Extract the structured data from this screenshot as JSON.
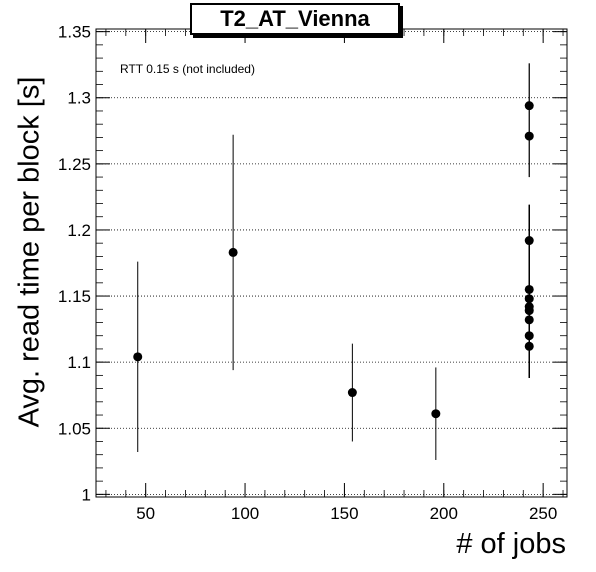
{
  "chart_data": {
    "type": "scatter",
    "title": "T2_AT_Vienna",
    "annotation": "RTT 0.15 s (not included)",
    "xlabel": "# of jobs",
    "ylabel": "Avg. read time per block [s]",
    "xlim": [
      25,
      262
    ],
    "ylim": [
      0.998,
      1.352
    ],
    "xticks": [
      50,
      100,
      150,
      200,
      250
    ],
    "yticks": [
      1,
      1.05,
      1.1,
      1.15,
      1.2,
      1.25,
      1.3,
      1.35
    ],
    "ytick_labels": [
      "1",
      "1.05",
      "1.1",
      "1.15",
      "1.2",
      "1.25",
      "1.3",
      "1.35"
    ],
    "grid": "horizontal-dotted",
    "points": [
      {
        "x": 46,
        "y": 1.104,
        "yerr_low": 1.032,
        "yerr_high": 1.176
      },
      {
        "x": 94,
        "y": 1.183,
        "yerr_low": 1.094,
        "yerr_high": 1.272
      },
      {
        "x": 154,
        "y": 1.077,
        "yerr_low": 1.04,
        "yerr_high": 1.114
      },
      {
        "x": 196,
        "y": 1.061,
        "yerr_low": 1.026,
        "yerr_high": 1.096
      },
      {
        "x": 243,
        "y": 1.294,
        "yerr_low": 1.24,
        "yerr_high": 1.326
      },
      {
        "x": 243,
        "y": 1.271,
        "yerr_low": 1.24,
        "yerr_high": 1.326
      },
      {
        "x": 243,
        "y": 1.192,
        "yerr_low": 1.088,
        "yerr_high": 1.219
      },
      {
        "x": 243,
        "y": 1.155,
        "yerr_low": 1.088,
        "yerr_high": 1.219
      },
      {
        "x": 243,
        "y": 1.148,
        "yerr_low": 1.088,
        "yerr_high": 1.219
      },
      {
        "x": 243,
        "y": 1.142,
        "yerr_low": 1.088,
        "yerr_high": 1.219
      },
      {
        "x": 243,
        "y": 1.139,
        "yerr_low": 1.088,
        "yerr_high": 1.219
      },
      {
        "x": 243,
        "y": 1.132,
        "yerr_low": 1.088,
        "yerr_high": 1.219
      },
      {
        "x": 243,
        "y": 1.12,
        "yerr_low": 1.088,
        "yerr_high": 1.219
      },
      {
        "x": 243,
        "y": 1.112,
        "yerr_low": 1.088,
        "yerr_high": 1.219
      }
    ],
    "marker_color": "#000000",
    "grid_color": "#000000"
  }
}
